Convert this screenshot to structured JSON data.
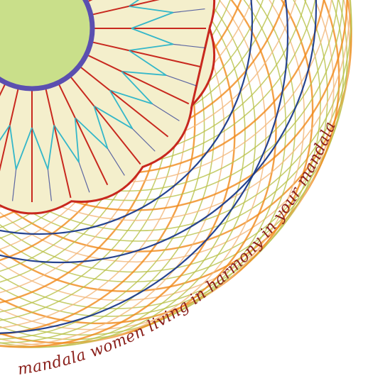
{
  "artwork": {
    "colors": {
      "background": "#ffffff",
      "center_fill": "#c9df8a",
      "center_ring": "#5a4fb0",
      "mandala_fill": "#f4efcc",
      "petal_red": "#c8281e",
      "petal_cyan": "#34b7c9",
      "petal_blue": "#1d2d8f",
      "lace_yellow_green": "#b9c24a",
      "lace_orange": "#f08a1a",
      "lace_peach": "#f2b87a",
      "lace_navy": "#1a3a8a",
      "script_color": "#8a1f1a"
    },
    "script_text": "mandala women living in harmony in your mandala"
  }
}
